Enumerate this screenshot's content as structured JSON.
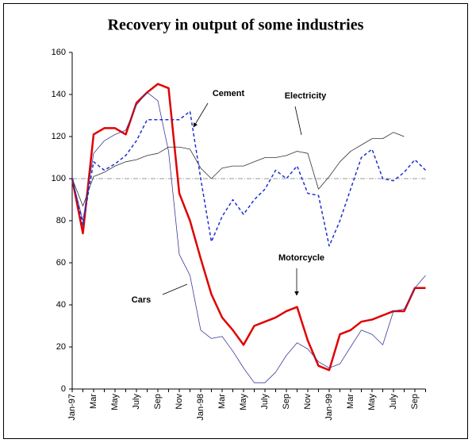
{
  "chart_data": {
    "type": "line",
    "title": "Recovery in output of some industries",
    "categories": [
      "Jan-97",
      null,
      "Mar",
      null,
      "May",
      null,
      "July",
      null,
      "Sep",
      null,
      "Nov",
      null,
      "Jan-98",
      null,
      "Mar",
      null,
      "May",
      null,
      "July",
      null,
      "Sep",
      null,
      "Nov",
      null,
      "Jan-99",
      null,
      "Mar",
      null,
      "May",
      null,
      "July",
      null,
      "Sep",
      null
    ],
    "series": [
      {
        "name": "Motorcycle",
        "color": "#e00000",
        "width": 2.5,
        "dashed": false,
        "values": [
          100,
          74,
          121,
          124,
          124,
          121,
          136,
          141,
          145,
          143,
          93,
          80,
          62,
          45,
          34,
          28,
          21,
          30,
          32,
          34,
          37,
          39,
          23,
          11,
          9,
          26,
          28,
          32,
          33,
          35,
          37,
          37,
          48,
          48
        ]
      },
      {
        "name": "Cars",
        "color": "#3a3a9a",
        "width": 0.8,
        "dashed": false,
        "values": [
          100,
          80,
          112,
          118,
          121,
          123,
          135,
          141,
          137,
          113,
          64,
          54,
          28,
          24,
          25,
          18,
          10,
          3,
          3,
          8,
          16,
          22,
          19,
          13,
          10,
          12,
          20,
          28,
          26,
          21,
          37,
          38,
          48,
          54
        ]
      },
      {
        "name": "Electricity",
        "color": "#333333",
        "width": 0.8,
        "dashed": false,
        "values": [
          100,
          87,
          101,
          103,
          106,
          108,
          109,
          111,
          112,
          115,
          115,
          114,
          105,
          100,
          105,
          106,
          106,
          108,
          110,
          110,
          111,
          113,
          112,
          95,
          101,
          108,
          113,
          116,
          119,
          119,
          122,
          120,
          null,
          null
        ]
      },
      {
        "name": "Cement",
        "color": "#1f2fd0",
        "width": 1.5,
        "dashed": true,
        "values": [
          100,
          78,
          108,
          104,
          107,
          111,
          118,
          128,
          128,
          128,
          128,
          132,
          100,
          70,
          82,
          90,
          83,
          90,
          95,
          104,
          100,
          106,
          93,
          92,
          68,
          80,
          95,
          110,
          114,
          100,
          99,
          103,
          109,
          104
        ]
      }
    ],
    "annotations": [
      "Cement",
      "Electricity",
      "Motorcycle",
      "Cars"
    ],
    "reference_line": 100,
    "ylim": [
      0,
      160
    ],
    "yticks": [
      0,
      20,
      40,
      60,
      80,
      100,
      120,
      140,
      160
    ],
    "grid": false
  }
}
